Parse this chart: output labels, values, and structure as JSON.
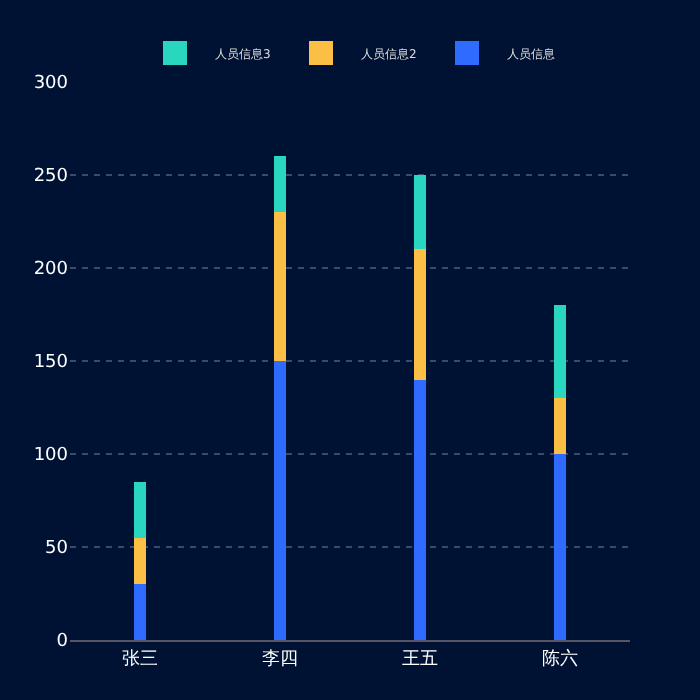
{
  "chart_data": {
    "type": "bar",
    "stacked": true,
    "categories": [
      "张三",
      "李四",
      "王五",
      "陈六"
    ],
    "series": [
      {
        "name": "人员信息",
        "color": "#2f6bff",
        "values": [
          30,
          150,
          140,
          100
        ]
      },
      {
        "name": "人员信息2",
        "color": "#fbbf45",
        "values": [
          25,
          80,
          70,
          30
        ]
      },
      {
        "name": "人员信息3",
        "color": "#2ad6c0",
        "values": [
          30,
          30,
          40,
          50
        ]
      }
    ],
    "ylim": [
      0,
      300
    ],
    "yticks": [
      0,
      50,
      100,
      150,
      200,
      250,
      300
    ],
    "grid": "y",
    "legend": "top"
  }
}
